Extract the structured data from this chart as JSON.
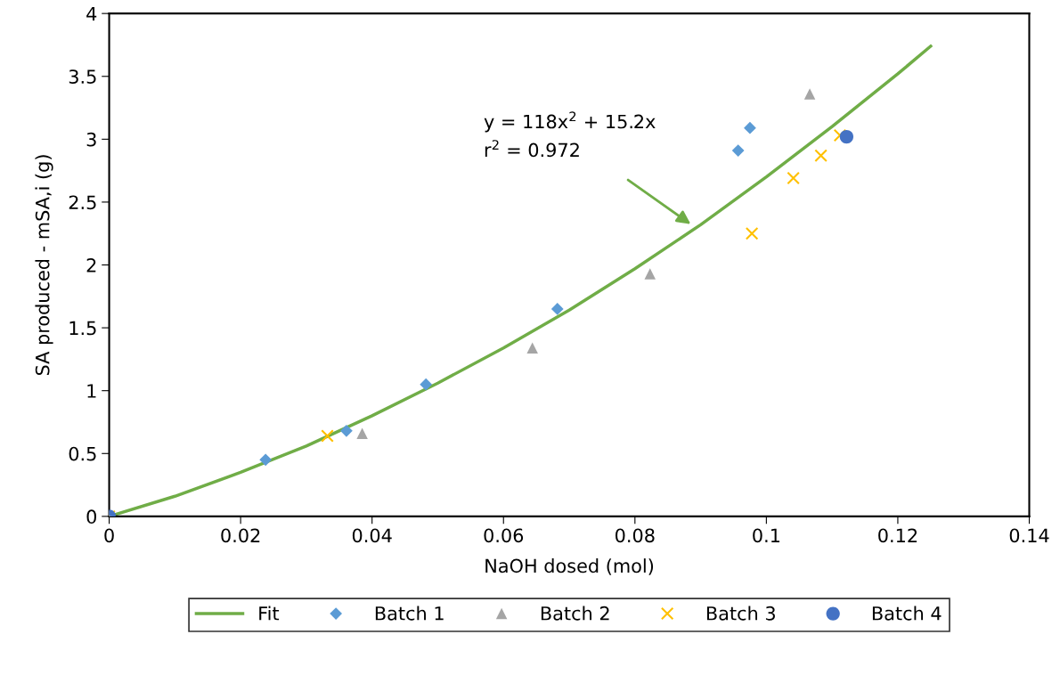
{
  "chart_data": {
    "type": "scatter",
    "xlabel": "NaOH dosed (mol)",
    "ylabel": "SA produced - mSA,i (g)",
    "xlim": [
      0,
      0.14
    ],
    "xticks": [
      0,
      0.02,
      0.04,
      0.06,
      0.08,
      0.1,
      0.12,
      0.14
    ],
    "ylim": [
      0,
      4
    ],
    "yticks": [
      0,
      0.5,
      1,
      1.5,
      2,
      2.5,
      3,
      3.5,
      4
    ],
    "grid": false,
    "legend": "bottom",
    "annotations": [
      "y = 118x$^{2}$ + 15.2x",
      "r$^{2}$ = 0.972"
    ],
    "series": [
      {
        "name": "Fit",
        "type": "line",
        "color": "#70ad47",
        "marker": "none",
        "line_style": "solid",
        "x": [
          0,
          0.01,
          0.02,
          0.03,
          0.04,
          0.05,
          0.06,
          0.07,
          0.08,
          0.09,
          0.1,
          0.11,
          0.12,
          0.125
        ],
        "values": [
          0,
          0.16,
          0.35,
          0.56,
          0.8,
          1.06,
          1.34,
          1.64,
          1.97,
          2.32,
          2.7,
          3.1,
          3.52,
          3.74
        ]
      },
      {
        "name": "Batch 1",
        "color": "#5b9bd5",
        "marker": "diamond",
        "x": [
          0,
          0.0238,
          0.0361,
          0.0482,
          0.0682,
          0.0957,
          0.0975
        ],
        "values": [
          0,
          0.45,
          0.68,
          1.05,
          1.65,
          2.91,
          3.09
        ]
      },
      {
        "name": "Batch 2",
        "color": "#a5a5a5",
        "marker": "triangle",
        "x": [
          0,
          0.0385,
          0.0644,
          0.0823,
          0.1066
        ],
        "values": [
          0,
          0.66,
          1.34,
          1.93,
          3.36
        ]
      },
      {
        "name": "Batch 3",
        "color": "#ffc000",
        "marker": "cross",
        "x": [
          0,
          0.0332,
          0.0978,
          0.1041,
          0.1083,
          0.1112
        ],
        "values": [
          0,
          0.64,
          2.25,
          2.69,
          2.87,
          3.03
        ]
      },
      {
        "name": "Batch 4",
        "color": "#4472c4",
        "marker": "circle",
        "x": [
          0,
          0.1122
        ],
        "values": [
          0,
          3.02
        ]
      }
    ]
  }
}
